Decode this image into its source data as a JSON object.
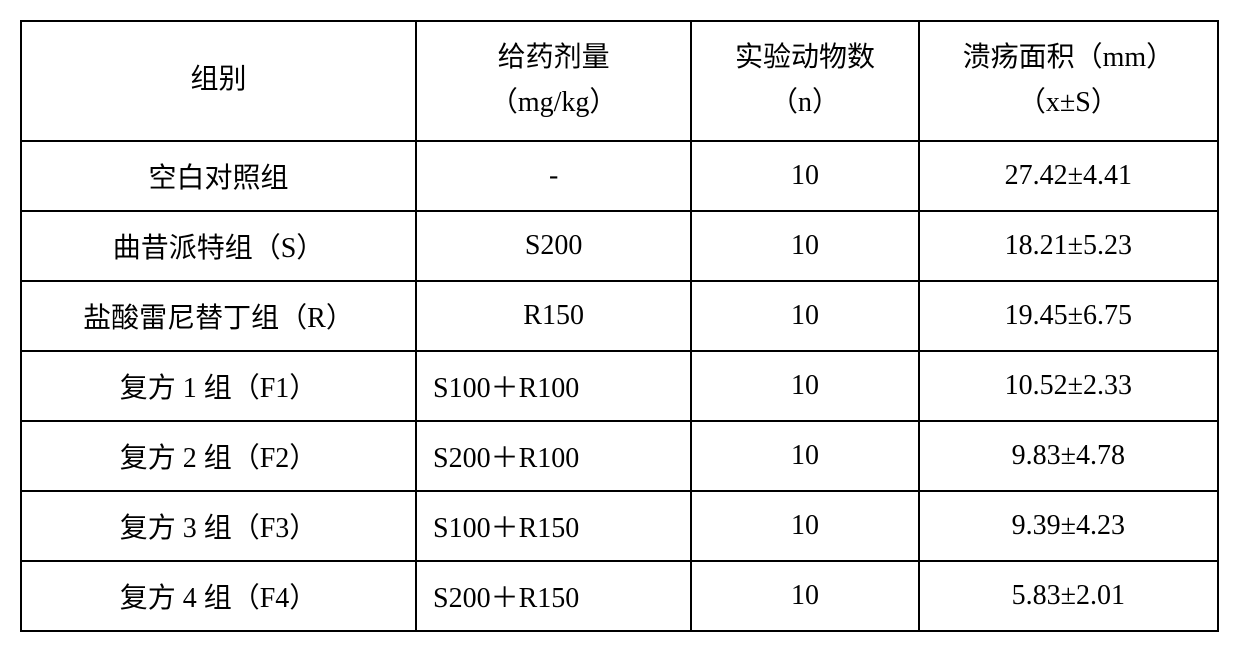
{
  "table": {
    "headers": {
      "group": "组别",
      "dose_line1": "给药剂量",
      "dose_line2": "（mg/kg）",
      "animals_line1": "实验动物数",
      "animals_line2": "（n）",
      "ulcer_line1": "溃疡面积（mm）",
      "ulcer_line2": "（x±S）"
    },
    "rows": [
      {
        "group": "空白对照组",
        "dose": "-",
        "dose_align": "center",
        "animals": "10",
        "ulcer": "27.42±4.41"
      },
      {
        "group": "曲昔派特组（S）",
        "dose": "S200",
        "dose_align": "center",
        "animals": "10",
        "ulcer": "18.21±5.23"
      },
      {
        "group": "盐酸雷尼替丁组（R）",
        "dose": "R150",
        "dose_align": "center",
        "animals": "10",
        "ulcer": "19.45±6.75"
      },
      {
        "group": "复方 1 组（F1）",
        "dose": "S100＋R100",
        "dose_align": "left",
        "animals": "10",
        "ulcer": "10.52±2.33"
      },
      {
        "group": "复方 2 组（F2）",
        "dose": "S200＋R100",
        "dose_align": "left",
        "animals": "10",
        "ulcer": "9.83±4.78"
      },
      {
        "group": "复方 3 组（F3）",
        "dose": "S100＋R150",
        "dose_align": "left",
        "animals": "10",
        "ulcer": "9.39±4.23"
      },
      {
        "group": "复方 4 组（F4）",
        "dose": "S200＋R150",
        "dose_align": "left",
        "animals": "10",
        "ulcer": "5.83±2.01"
      }
    ],
    "styling": {
      "border_color": "#000000",
      "border_width": 2,
      "background_color": "#ffffff",
      "text_color": "#000000",
      "font_size": 28,
      "font_family": "SimSun",
      "cell_padding": 14
    }
  }
}
